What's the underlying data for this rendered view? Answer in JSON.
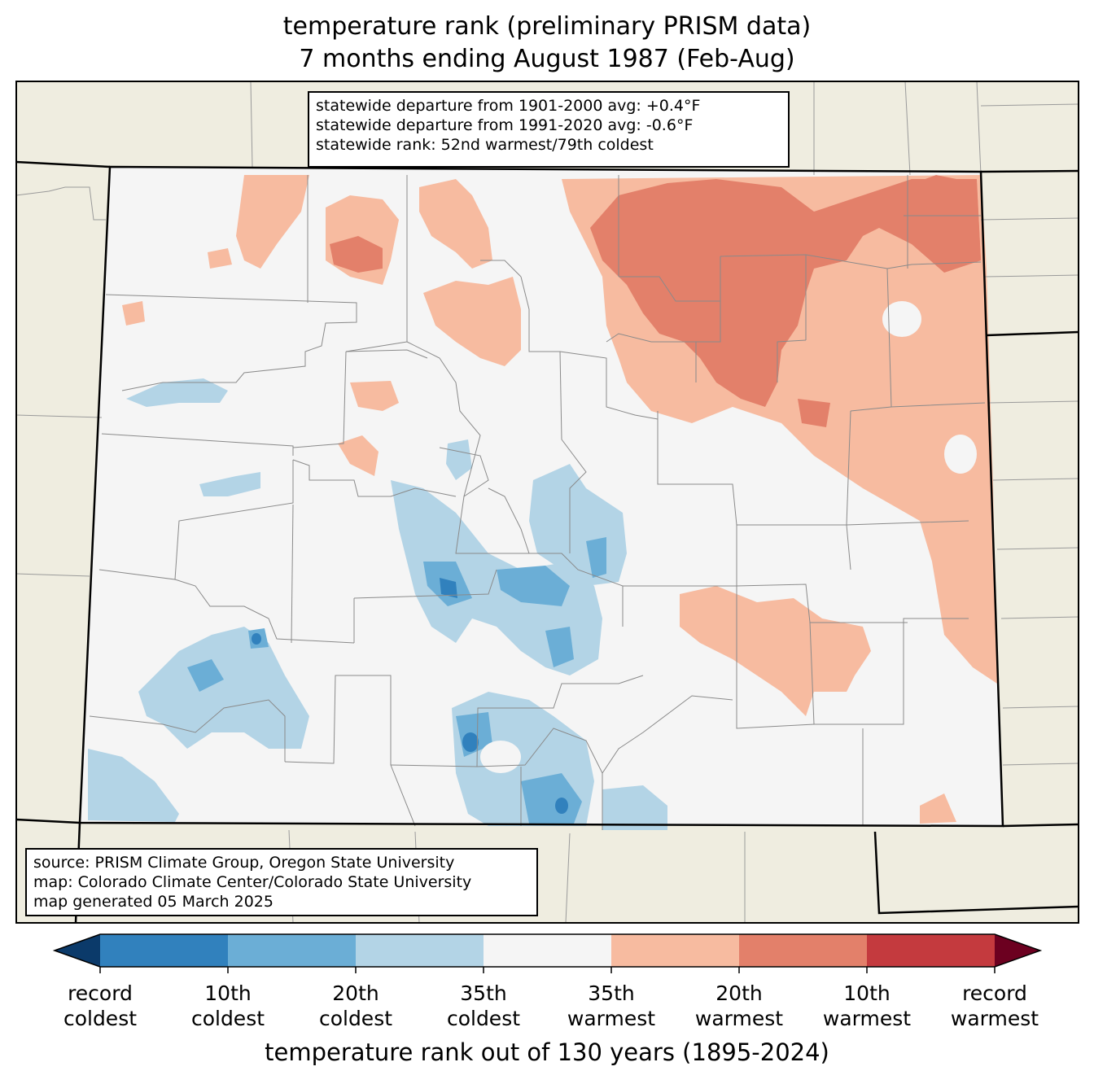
{
  "title": {
    "line1": "temperature rank (preliminary PRISM data)",
    "line2": "7 months ending August 1987 (Feb-Aug)"
  },
  "stats_box": {
    "line1": "statewide departure from 1901-2000 avg: +0.4°F",
    "line2": "statewide departure from 1991-2020 avg: -0.6°F",
    "line3": "statewide rank: 52nd warmest/79th coldest"
  },
  "source_box": {
    "line1": "source: PRISM Climate Group, Oregon State University",
    "line2": "map: Colorado Climate Center/Colorado State University",
    "line3": "map generated 05 March 2025"
  },
  "colorbar": {
    "title": "temperature rank out of 130 years (1895-2024)",
    "colors": {
      "record_cold_ext": "#0b3a6a",
      "c1": "#3181bd",
      "c2": "#6baed6",
      "c3": "#b3d4e6",
      "c4": "#f5f5f5",
      "c5": "#f7bba0",
      "c6": "#e3806a",
      "c7": "#c43a3e",
      "record_warm_ext": "#6c0020"
    },
    "labels": [
      {
        "l1": "record",
        "l2": "coldest"
      },
      {
        "l1": "10th",
        "l2": "coldest"
      },
      {
        "l1": "20th",
        "l2": "coldest"
      },
      {
        "l1": "35th",
        "l2": "coldest"
      },
      {
        "l1": "35th",
        "l2": "warmest"
      },
      {
        "l1": "20th",
        "l2": "warmest"
      },
      {
        "l1": "10th",
        "l2": "warmest"
      },
      {
        "l1": "record",
        "l2": "warmest"
      }
    ]
  },
  "map_colors": {
    "outside": "#efede0",
    "state_fill": "#f5f5f5",
    "county_line": "#8a8a8a",
    "border": "#000000"
  }
}
